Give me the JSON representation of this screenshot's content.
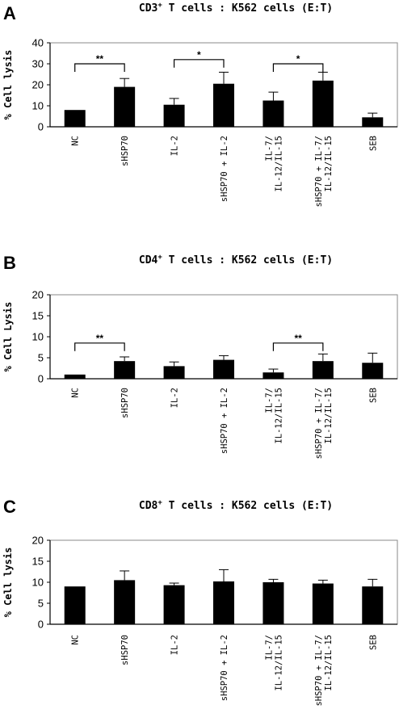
{
  "chart_data": [
    {
      "type": "bar",
      "panel": "A",
      "title_main": "CD3",
      "title_sup": "+",
      "title_rest": " T cells : K562 cells (E:T)",
      "ylabel": "% Cell lysis",
      "ylim": [
        0,
        40
      ],
      "yticks": [
        0,
        10,
        20,
        30,
        40
      ],
      "categories": [
        "NC",
        "sHSP70",
        "IL-2",
        "sHSP70 + IL-2",
        "IL-7/\nIL-12/IL-15",
        "sHSP70 + IL-7/\nIL-12/IL-15",
        "SEB"
      ],
      "values": [
        8,
        19,
        10.5,
        20.5,
        12.5,
        22,
        4.5
      ],
      "errors": [
        0,
        4,
        3,
        5.5,
        4,
        4,
        2
      ],
      "significance": [
        {
          "from": 0,
          "to": 1,
          "label": "**",
          "y": 30
        },
        {
          "from": 2,
          "to": 3,
          "label": "*",
          "y": 32
        },
        {
          "from": 4,
          "to": 5,
          "label": "*",
          "y": 30
        }
      ]
    },
    {
      "type": "bar",
      "panel": "B",
      "title_main": "CD4",
      "title_sup": "+",
      "title_rest": " T cells : K562 cells (E:T)",
      "ylabel": "% Cell Lysis",
      "ylim": [
        0,
        20
      ],
      "yticks": [
        0,
        5,
        10,
        15,
        20
      ],
      "categories": [
        "NC",
        "sHSP70",
        "IL-2",
        "sHSP70 + IL-2",
        "IL-7/\nIL-12/IL-15",
        "sHSP70 + IL-7/\nIL-12/IL-15",
        "SEB"
      ],
      "values": [
        1,
        4.2,
        3,
        4.5,
        1.5,
        4.2,
        3.8
      ],
      "errors": [
        0,
        1,
        1,
        1,
        0.8,
        1.7,
        2.3
      ],
      "significance": [
        {
          "from": 0,
          "to": 1,
          "label": "**",
          "y": 8.5
        },
        {
          "from": 4,
          "to": 5,
          "label": "**",
          "y": 8.5
        }
      ]
    },
    {
      "type": "bar",
      "panel": "C",
      "title_main": "CD8",
      "title_sup": "+",
      "title_rest": " T cells : K562 cells (E:T)",
      "ylabel": "% Cell lysis",
      "ylim": [
        0,
        20
      ],
      "yticks": [
        0,
        5,
        10,
        15,
        20
      ],
      "categories": [
        "NC",
        "sHSP70",
        "IL-2",
        "sHSP70 + IL-2",
        "IL-7/\nIL-12/IL-15",
        "sHSP70 + IL-7/\nIL-12/IL-15",
        "SEB"
      ],
      "values": [
        9,
        10.5,
        9.3,
        10.2,
        10,
        9.7,
        9
      ],
      "errors": [
        0,
        2.2,
        0.5,
        2.8,
        0.7,
        0.8,
        1.7
      ],
      "significance": []
    }
  ]
}
